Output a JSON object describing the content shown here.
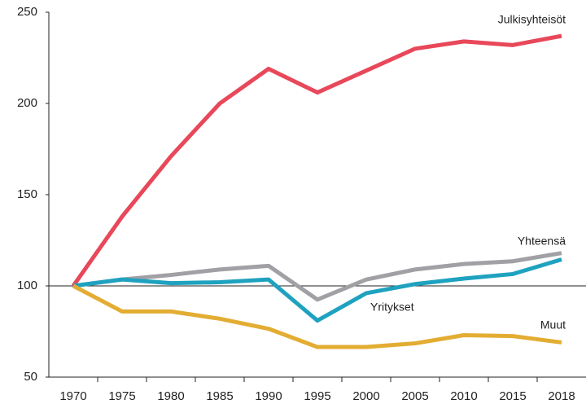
{
  "chart_data": {
    "type": "line",
    "categories": [
      "1970",
      "1975",
      "1980",
      "1985",
      "1990",
      "1995",
      "2000",
      "2005",
      "2010",
      "2015",
      "2018"
    ],
    "series": [
      {
        "name": "Julkisyhteisöt",
        "color": "#e8485a",
        "values": [
          100,
          138,
          171,
          200,
          219,
          206,
          218,
          230,
          234,
          232,
          237
        ]
      },
      {
        "name": "Yhteensä",
        "color": "#a0a0a5",
        "values": [
          100,
          103.5,
          106,
          109,
          111,
          92.5,
          103.5,
          109,
          112,
          113.5,
          118
        ]
      },
      {
        "name": "Yritykset",
        "color": "#1fa2bf",
        "values": [
          100,
          103.5,
          101.5,
          102,
          103.5,
          81,
          96,
          101,
          104,
          106.5,
          114.5
        ]
      },
      {
        "name": "Muut",
        "color": "#e3ad33",
        "values": [
          100,
          86,
          86,
          82,
          76.5,
          66.5,
          66.5,
          68.5,
          73,
          72.5,
          69
        ]
      }
    ],
    "ylim": [
      50,
      250
    ],
    "yticks": [
      50,
      100,
      150,
      200,
      250
    ],
    "reference_line": 100
  }
}
